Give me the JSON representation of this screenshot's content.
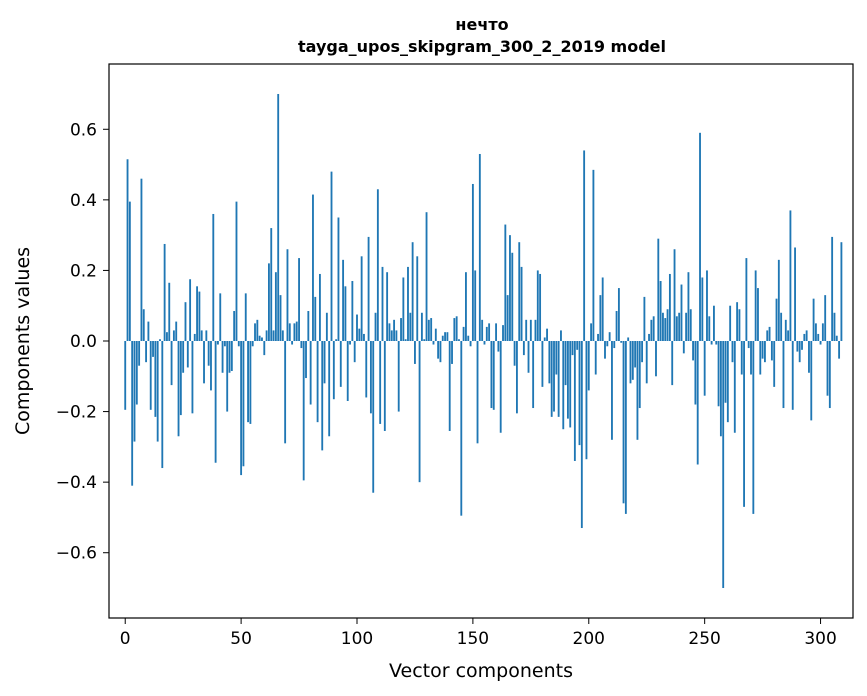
{
  "chart_data": {
    "type": "bar",
    "title_line1": "нечто",
    "title_line2": "tayga_upos_skipgram_300_2_2019 model",
    "xlabel": "Vector components",
    "ylabel": "Components values",
    "xlim": [
      -7,
      314
    ],
    "ylim": [
      -0.785,
      0.785
    ],
    "xticks": [
      0,
      50,
      100,
      150,
      200,
      250,
      300
    ],
    "xtick_labels": [
      "0",
      "50",
      "100",
      "150",
      "200",
      "250",
      "300"
    ],
    "yticks": [
      -0.6,
      -0.4,
      -0.2,
      0.0,
      0.2,
      0.4,
      0.6
    ],
    "ytick_labels": [
      "−0.6",
      "−0.4",
      "−0.2",
      "0.0",
      "0.2",
      "0.4",
      "0.6"
    ],
    "bar_color": "#1f77b4",
    "values": [
      -0.195,
      0.515,
      0.395,
      -0.41,
      -0.285,
      -0.18,
      -0.07,
      0.46,
      0.09,
      -0.06,
      0.055,
      -0.195,
      -0.045,
      -0.215,
      -0.285,
      0.005,
      -0.36,
      0.275,
      0.025,
      0.165,
      -0.125,
      0.03,
      0.055,
      -0.27,
      -0.21,
      -0.09,
      0.11,
      -0.075,
      0.175,
      -0.205,
      0.02,
      0.155,
      0.14,
      0.03,
      -0.12,
      0.03,
      -0.07,
      -0.14,
      0.36,
      -0.345,
      -0.01,
      0.135,
      -0.09,
      -0.015,
      -0.2,
      -0.09,
      -0.085,
      0.085,
      0.395,
      -0.015,
      -0.38,
      -0.355,
      0.135,
      -0.23,
      -0.235,
      -0.015,
      0.05,
      0.06,
      0.015,
      0.01,
      -0.04,
      0.03,
      0.22,
      0.32,
      0.03,
      0.195,
      0.7,
      0.13,
      0.03,
      -0.29,
      0.26,
      0.05,
      -0.01,
      0.05,
      0.055,
      0.235,
      -0.02,
      -0.395,
      -0.105,
      0.085,
      -0.18,
      0.415,
      0.125,
      -0.23,
      0.19,
      -0.31,
      -0.12,
      0.08,
      -0.27,
      0.48,
      -0.165,
      0.005,
      0.35,
      -0.13,
      0.23,
      0.155,
      -0.17,
      -0.01,
      0.17,
      -0.06,
      0.075,
      0.035,
      0.24,
      0.02,
      -0.16,
      0.295,
      -0.205,
      -0.43,
      0.08,
      0.43,
      -0.235,
      0.21,
      -0.255,
      0.195,
      0.05,
      0.03,
      0.06,
      0.03,
      -0.2,
      0.065,
      0.18,
      0.005,
      0.21,
      0.08,
      0.28,
      -0.065,
      0.24,
      -0.4,
      0.08,
      0.005,
      0.365,
      0.06,
      0.065,
      -0.01,
      0.035,
      -0.05,
      -0.06,
      0.015,
      0.025,
      0.025,
      -0.255,
      -0.065,
      0.065,
      0.07,
      0.005,
      -0.495,
      0.04,
      0.195,
      0.015,
      -0.015,
      0.445,
      0.2,
      -0.29,
      0.53,
      0.06,
      -0.01,
      0.04,
      0.05,
      -0.19,
      -0.195,
      0.05,
      -0.03,
      -0.26,
      0.045,
      0.33,
      0.13,
      0.3,
      0.25,
      -0.07,
      -0.205,
      0.28,
      0.21,
      -0.04,
      0.06,
      -0.09,
      0.06,
      -0.19,
      0.06,
      0.2,
      0.19,
      -0.13,
      0.01,
      0.035,
      -0.12,
      -0.215,
      -0.2,
      -0.095,
      -0.215,
      0.03,
      -0.25,
      -0.125,
      -0.22,
      -0.245,
      -0.04,
      -0.34,
      -0.025,
      -0.295,
      -0.53,
      0.54,
      -0.335,
      -0.14,
      0.05,
      0.485,
      -0.095,
      0.02,
      0.13,
      0.18,
      -0.05,
      -0.015,
      0.025,
      -0.28,
      -0.02,
      0.085,
      0.15,
      -0.005,
      -0.46,
      -0.49,
      0.01,
      -0.12,
      -0.11,
      -0.075,
      -0.28,
      -0.19,
      -0.06,
      0.125,
      -0.12,
      0.02,
      0.06,
      0.07,
      -0.1,
      0.29,
      0.17,
      0.08,
      0.065,
      0.09,
      0.19,
      -0.125,
      0.26,
      0.07,
      0.08,
      0.16,
      -0.035,
      0.08,
      0.195,
      0.09,
      -0.055,
      -0.18,
      -0.35,
      0.59,
      0.18,
      -0.155,
      0.2,
      0.07,
      -0.01,
      0.1,
      -0.01,
      -0.185,
      -0.27,
      -0.7,
      -0.175,
      -0.23,
      0.1,
      -0.06,
      -0.26,
      0.11,
      0.09,
      -0.095,
      -0.47,
      0.235,
      -0.02,
      -0.095,
      -0.49,
      0.2,
      0.15,
      -0.095,
      -0.05,
      -0.06,
      0.03,
      0.04,
      -0.055,
      -0.13,
      0.12,
      0.23,
      0.08,
      -0.19,
      0.06,
      0.03,
      0.37,
      -0.195,
      0.265,
      -0.03,
      -0.06,
      -0.025,
      0.02,
      0.03,
      -0.09,
      -0.225,
      0.12,
      0.05,
      0.02,
      -0.01,
      0.05,
      0.13,
      -0.155,
      -0.19,
      0.295,
      0.08,
      0.015,
      -0.05,
      0.28
    ]
  }
}
